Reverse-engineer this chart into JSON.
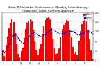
{
  "title": "Solar PV/Inverter Performance Monthly Solar Energy Production Value Running Average",
  "title_fontsize": 3.2,
  "bar_color": "#ff0000",
  "avg_color": "#0000cc",
  "background_color": "#ffffff",
  "grid_color": "#aaaaaa",
  "ylim": [
    0,
    200
  ],
  "yticks": [
    0,
    40,
    80,
    120,
    160,
    200
  ],
  "ytick_labels": [
    "0",
    "40",
    "80",
    "120",
    "160",
    "200"
  ],
  "values": [
    45,
    20,
    65,
    100,
    135,
    155,
    170,
    160,
    115,
    70,
    30,
    15,
    40,
    55,
    95,
    130,
    158,
    162,
    172,
    162,
    128,
    80,
    45,
    25,
    48,
    68,
    108,
    142,
    168,
    178,
    182,
    172,
    138,
    92,
    52,
    30,
    32,
    52,
    98,
    132,
    148,
    158,
    168,
    162,
    128,
    98,
    58,
    28,
    38,
    22,
    82,
    122,
    152,
    162,
    172,
    162,
    128,
    88,
    42,
    8
  ],
  "running_avg": [
    45,
    33,
    43,
    58,
    73,
    86,
    98,
    106,
    107,
    105,
    95,
    85,
    78,
    72,
    74,
    80,
    89,
    98,
    106,
    113,
    116,
    115,
    112,
    107,
    103,
    100,
    101,
    105,
    110,
    116,
    122,
    126,
    128,
    128,
    125,
    121,
    116,
    112,
    110,
    112,
    114,
    116,
    119,
    122,
    123,
    123,
    121,
    118,
    114,
    109,
    108,
    110,
    112,
    115,
    118,
    121,
    122,
    121,
    118,
    111
  ],
  "xtick_step": 6,
  "legend_labels": [
    "kWh/m",
    "kWh/m"
  ]
}
